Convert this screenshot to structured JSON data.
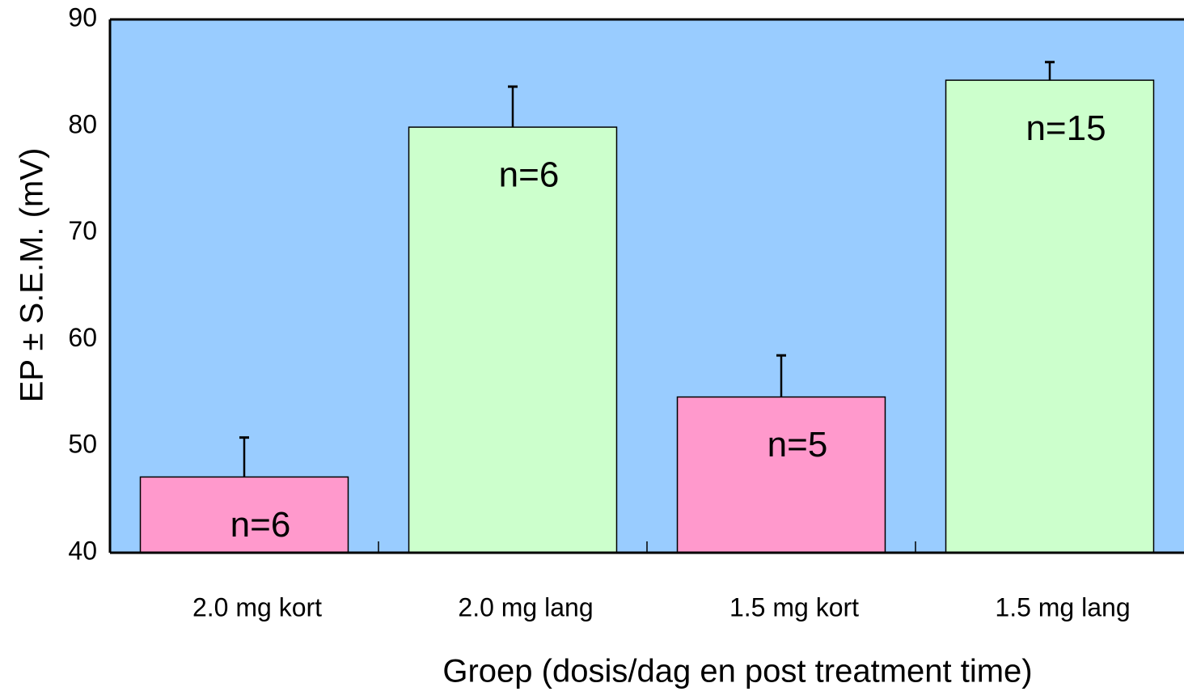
{
  "chart_data": {
    "type": "bar",
    "x_label": "Groep (dosis/dag en post treatment time)",
    "y_label": "EP ± S.E.M. (mV)",
    "categories": [
      "2.0 mg kort",
      "2.0 mg lang",
      "1.5 mg kort",
      "1.5 mg lang"
    ],
    "values": [
      47.1,
      79.9,
      54.6,
      84.3
    ],
    "errors": [
      3.7,
      3.8,
      3.9,
      1.7
    ],
    "colors": [
      "#ff99cc",
      "#ccffcc",
      "#ff99cc",
      "#ccffcc"
    ],
    "annotations": [
      "n=6",
      "n=6",
      "n=5",
      "n=15"
    ],
    "background": "#99ccff",
    "ylim": [
      40,
      90
    ],
    "yticks": [
      40,
      50,
      60,
      70,
      80,
      90
    ],
    "grid": false
  }
}
